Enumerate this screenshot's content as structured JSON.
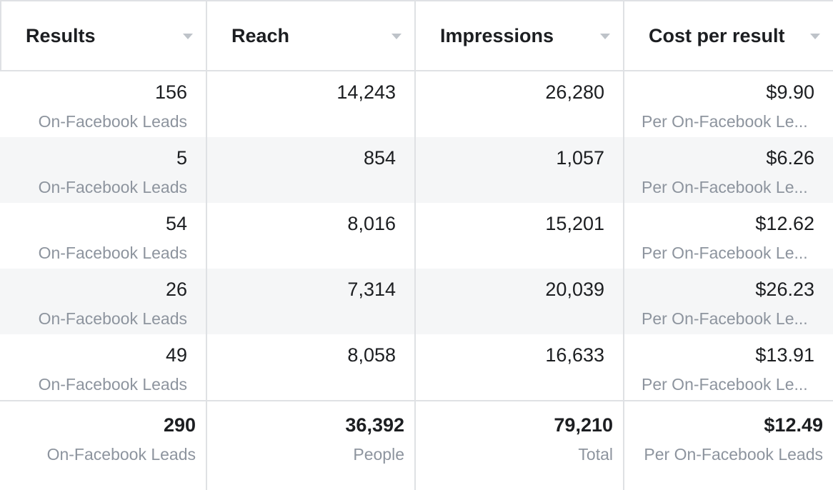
{
  "columns": [
    {
      "label": "Results"
    },
    {
      "label": "Reach"
    },
    {
      "label": "Impressions"
    },
    {
      "label": "Cost per result"
    }
  ],
  "rows": [
    {
      "results": "156",
      "results_sub": "On-Facebook Leads",
      "reach": "14,243",
      "impressions": "26,280",
      "cost": "$9.90",
      "cost_sub": "Per On-Facebook Le..."
    },
    {
      "results": "5",
      "results_sub": "On-Facebook Leads",
      "reach": "854",
      "impressions": "1,057",
      "cost": "$6.26",
      "cost_sub": "Per On-Facebook Le..."
    },
    {
      "results": "54",
      "results_sub": "On-Facebook Leads",
      "reach": "8,016",
      "impressions": "15,201",
      "cost": "$12.62",
      "cost_sub": "Per On-Facebook Le..."
    },
    {
      "results": "26",
      "results_sub": "On-Facebook Leads",
      "reach": "7,314",
      "impressions": "20,039",
      "cost": "$26.23",
      "cost_sub": "Per On-Facebook Le..."
    },
    {
      "results": "49",
      "results_sub": "On-Facebook Leads",
      "reach": "8,058",
      "impressions": "16,633",
      "cost": "$13.91",
      "cost_sub": "Per On-Facebook Le..."
    }
  ],
  "totals": {
    "results": "290",
    "results_sub": "On-Facebook Leads",
    "reach": "36,392",
    "reach_sub": "People",
    "impressions": "79,210",
    "impressions_sub": "Total",
    "cost": "$12.49",
    "cost_sub": "Per On-Facebook Leads"
  },
  "icons": {
    "sort": "sort-caret-icon"
  },
  "colors": {
    "border": "#dfe1e4",
    "stripe": "#f5f6f7",
    "text": "#1c1e21",
    "muted": "#8d949e"
  }
}
